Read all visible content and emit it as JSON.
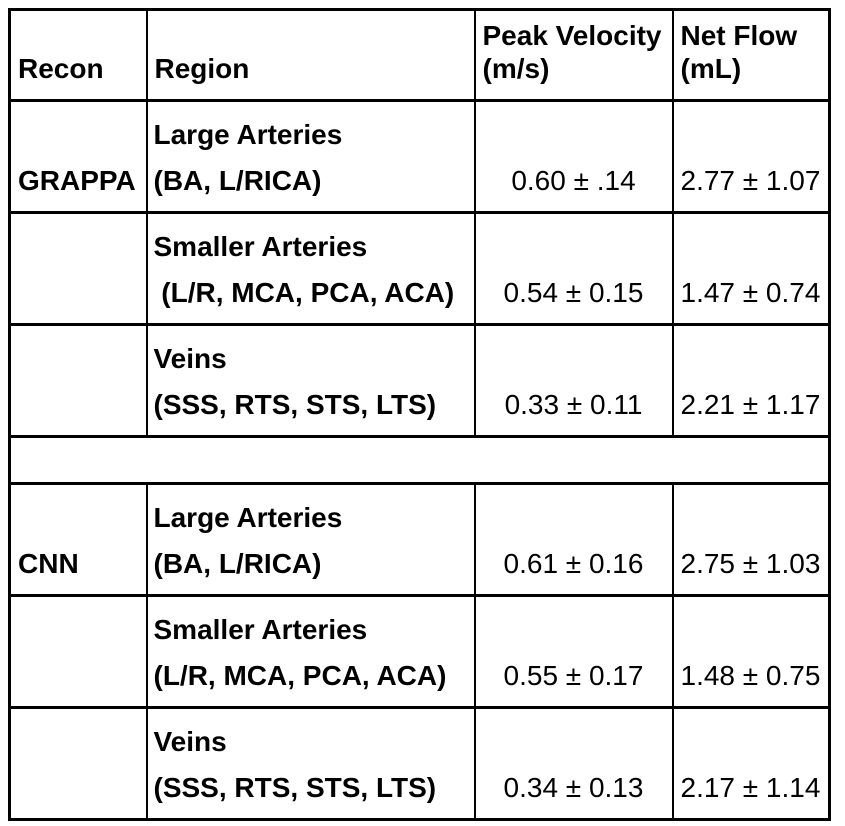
{
  "table": {
    "headers": [
      "Recon",
      "Region",
      "Peak Velocity\n(m/s)",
      "Net Flow\n(mL)"
    ],
    "sections": [
      {
        "recon": "GRAPPA",
        "rows": [
          {
            "region_line1": "Large Arteries",
            "region_line2": "(BA, L/RICA)",
            "peak_velocity": "0.60 ± .14",
            "net_flow": "2.77 ± 1.07"
          },
          {
            "region_line1": "Smaller Arteries",
            "region_line2": " (L/R, MCA, PCA, ACA)",
            "peak_velocity": "0.54 ± 0.15",
            "net_flow": "1.47 ± 0.74"
          },
          {
            "region_line1": "Veins",
            "region_line2": "(SSS, RTS, STS, LTS)",
            "peak_velocity": "0.33 ± 0.11",
            "net_flow": "2.21 ± 1.17"
          }
        ]
      },
      {
        "recon": "CNN",
        "rows": [
          {
            "region_line1": "Large Arteries",
            "region_line2": "(BA, L/RICA)",
            "peak_velocity": "0.61 ± 0.16",
            "net_flow": "2.75 ± 1.03"
          },
          {
            "region_line1": "Smaller Arteries",
            "region_line2": "(L/R, MCA, PCA, ACA)",
            "peak_velocity": "0.55 ± 0.17",
            "net_flow": "1.48 ± 0.75"
          },
          {
            "region_line1": "Veins",
            "region_line2": "(SSS, RTS, STS, LTS)",
            "peak_velocity": "0.34 ± 0.13",
            "net_flow": "2.17 ± 1.14"
          }
        ]
      }
    ]
  }
}
